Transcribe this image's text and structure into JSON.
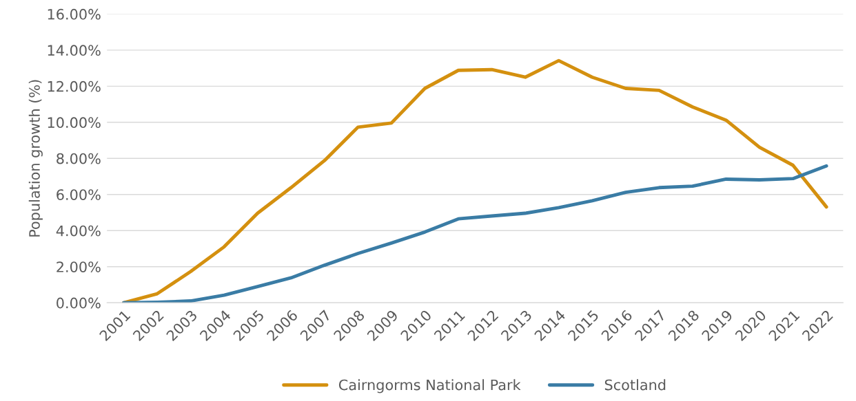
{
  "chart_data": {
    "type": "line",
    "ylabel": "Population growth (%)",
    "categories": [
      "2001",
      "2002",
      "2003",
      "2004",
      "2005",
      "2006",
      "2007",
      "2008",
      "2009",
      "2010",
      "2011",
      "2012",
      "2013",
      "2014",
      "2015",
      "2016",
      "2017",
      "2018",
      "2019",
      "2020",
      "2021",
      "2022"
    ],
    "series": [
      {
        "name": "Cairngorms National Park",
        "color": "#d4900f",
        "values": [
          0,
          0.5,
          1.73,
          3.1,
          4.96,
          6.38,
          7.88,
          9.73,
          9.96,
          11.88,
          12.88,
          12.92,
          12.5,
          13.42,
          12.5,
          11.88,
          11.77,
          10.85,
          10.12,
          8.62,
          7.62,
          5.31
        ]
      },
      {
        "name": "Scotland",
        "color": "#3a7ca5",
        "values": [
          0,
          0.03,
          0.1,
          0.42,
          0.9,
          1.38,
          2.08,
          2.73,
          3.31,
          3.92,
          4.65,
          4.81,
          4.96,
          5.27,
          5.65,
          6.12,
          6.38,
          6.46,
          6.85,
          6.81,
          6.88,
          7.58
        ]
      }
    ],
    "ylim": [
      0,
      16
    ],
    "yticks": [
      {
        "value": 0,
        "label": "0.00%"
      },
      {
        "value": 2,
        "label": "2.00%"
      },
      {
        "value": 4,
        "label": "4.00%"
      },
      {
        "value": 6,
        "label": "6.00%"
      },
      {
        "value": 8,
        "label": "8.00%"
      },
      {
        "value": 10,
        "label": "10.00%"
      },
      {
        "value": 12,
        "label": "12.00%"
      },
      {
        "value": 14,
        "label": "14.00%"
      },
      {
        "value": 16,
        "label": "16.00%"
      }
    ],
    "grid": "y",
    "legend": "bottom",
    "marker": "none",
    "line_style": "solid"
  }
}
